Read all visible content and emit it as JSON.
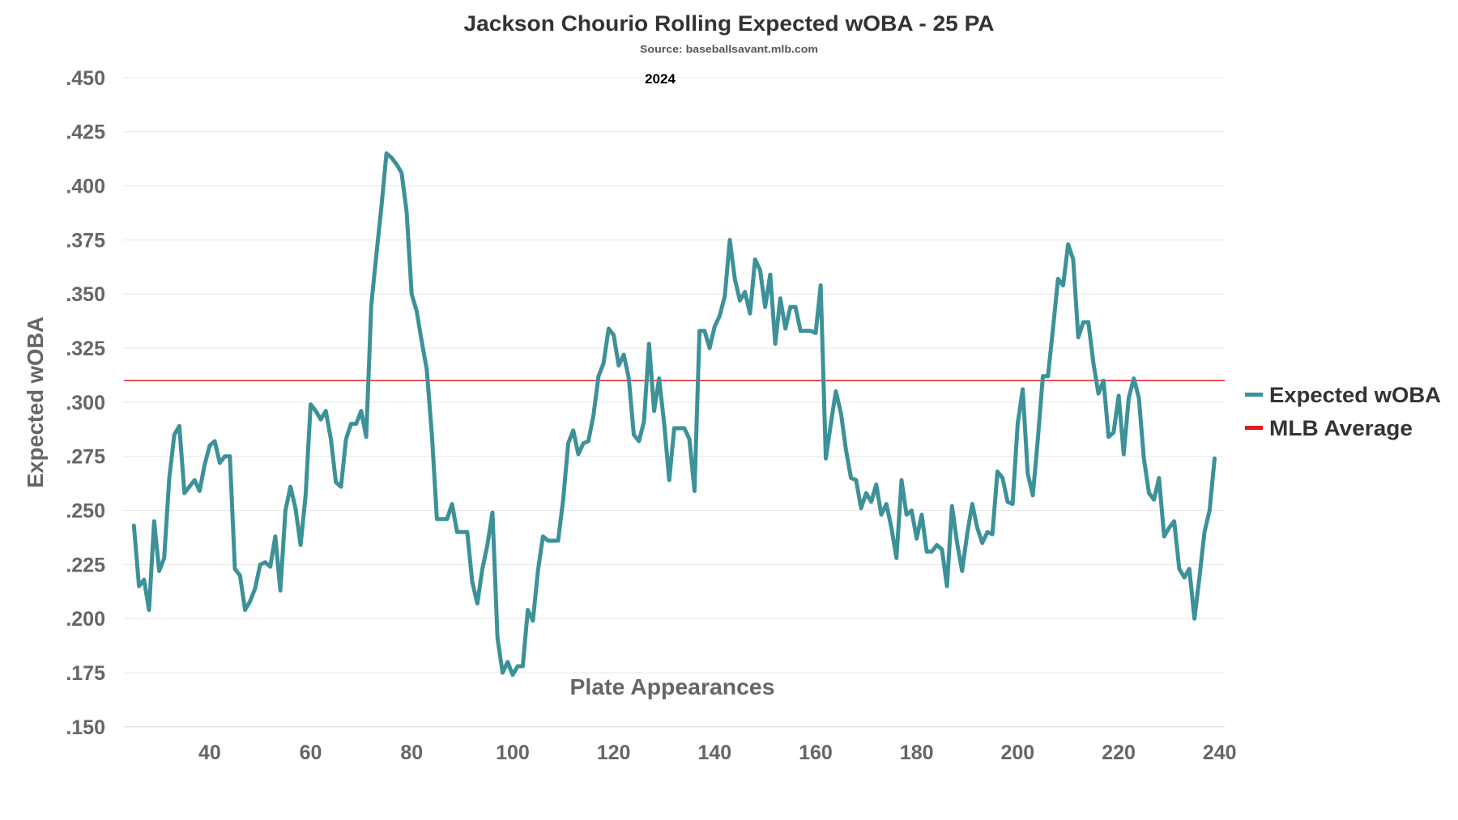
{
  "chart_data": {
    "type": "line",
    "title": "Jackson Chourio Rolling Expected wOBA - 25 PA",
    "subtitle": "Source: baseballsavant.mlb.com",
    "annotation": "2024",
    "xlabel": "Plate Appearances",
    "ylabel": "Expected wOBA",
    "xlim": [
      23,
      241
    ],
    "ylim": [
      0.15,
      0.45
    ],
    "xticks": [
      40,
      60,
      80,
      100,
      120,
      140,
      160,
      180,
      200,
      220,
      240
    ],
    "yticks": [
      ".150",
      ".175",
      ".200",
      ".225",
      ".250",
      ".275",
      ".300",
      ".325",
      ".350",
      ".375",
      ".400",
      ".425",
      ".450"
    ],
    "grid": "horizontal",
    "legend": "right",
    "series": [
      {
        "name": "Expected wOBA",
        "color": "#3d9199",
        "x_start": 25,
        "values": [
          0.243,
          0.215,
          0.218,
          0.204,
          0.245,
          0.222,
          0.228,
          0.265,
          0.285,
          0.289,
          0.258,
          0.261,
          0.264,
          0.259,
          0.271,
          0.28,
          0.282,
          0.272,
          0.275,
          0.275,
          0.223,
          0.22,
          0.204,
          0.208,
          0.214,
          0.225,
          0.226,
          0.224,
          0.238,
          0.213,
          0.25,
          0.261,
          0.251,
          0.234,
          0.257,
          0.299,
          0.296,
          0.292,
          0.296,
          0.283,
          0.263,
          0.261,
          0.283,
          0.29,
          0.29,
          0.296,
          0.284,
          0.345,
          0.368,
          0.39,
          0.415,
          0.413,
          0.41,
          0.406,
          0.388,
          0.35,
          0.342,
          0.328,
          0.315,
          0.285,
          0.246,
          0.246,
          0.246,
          0.253,
          0.24,
          0.24,
          0.24,
          0.217,
          0.207,
          0.223,
          0.234,
          0.249,
          0.191,
          0.175,
          0.18,
          0.174,
          0.178,
          0.178,
          0.204,
          0.199,
          0.222,
          0.238,
          0.236,
          0.236,
          0.236,
          0.255,
          0.281,
          0.287,
          0.276,
          0.281,
          0.282,
          0.294,
          0.312,
          0.318,
          0.334,
          0.331,
          0.317,
          0.322,
          0.311,
          0.285,
          0.282,
          0.291,
          0.327,
          0.296,
          0.311,
          0.29,
          0.264,
          0.288,
          0.288,
          0.288,
          0.283,
          0.259,
          0.333,
          0.333,
          0.325,
          0.335,
          0.34,
          0.349,
          0.375,
          0.357,
          0.347,
          0.351,
          0.341,
          0.366,
          0.361,
          0.344,
          0.359,
          0.327,
          0.348,
          0.334,
          0.344,
          0.344,
          0.333,
          0.333,
          0.333,
          0.332,
          0.354,
          0.274,
          0.29,
          0.305,
          0.295,
          0.278,
          0.265,
          0.264,
          0.251,
          0.258,
          0.254,
          0.262,
          0.248,
          0.253,
          0.242,
          0.228,
          0.264,
          0.248,
          0.25,
          0.237,
          0.248,
          0.231,
          0.231,
          0.234,
          0.232,
          0.215,
          0.252,
          0.235,
          0.222,
          0.239,
          0.253,
          0.242,
          0.235,
          0.24,
          0.239,
          0.268,
          0.265,
          0.254,
          0.253,
          0.29,
          0.306,
          0.267,
          0.257,
          0.283,
          0.312,
          0.312,
          0.334,
          0.357,
          0.354,
          0.373,
          0.366,
          0.33,
          0.337,
          0.337,
          0.318,
          0.304,
          0.31,
          0.284,
          0.286,
          0.303,
          0.276,
          0.302,
          0.311,
          0.302,
          0.274,
          0.258,
          0.255,
          0.265,
          0.238,
          0.242,
          0.245,
          0.223,
          0.219,
          0.223,
          0.2,
          0.219,
          0.24,
          0.25,
          0.274
        ]
      },
      {
        "name": "MLB Average",
        "color": "#e31a1c",
        "constant": 0.31
      }
    ]
  }
}
